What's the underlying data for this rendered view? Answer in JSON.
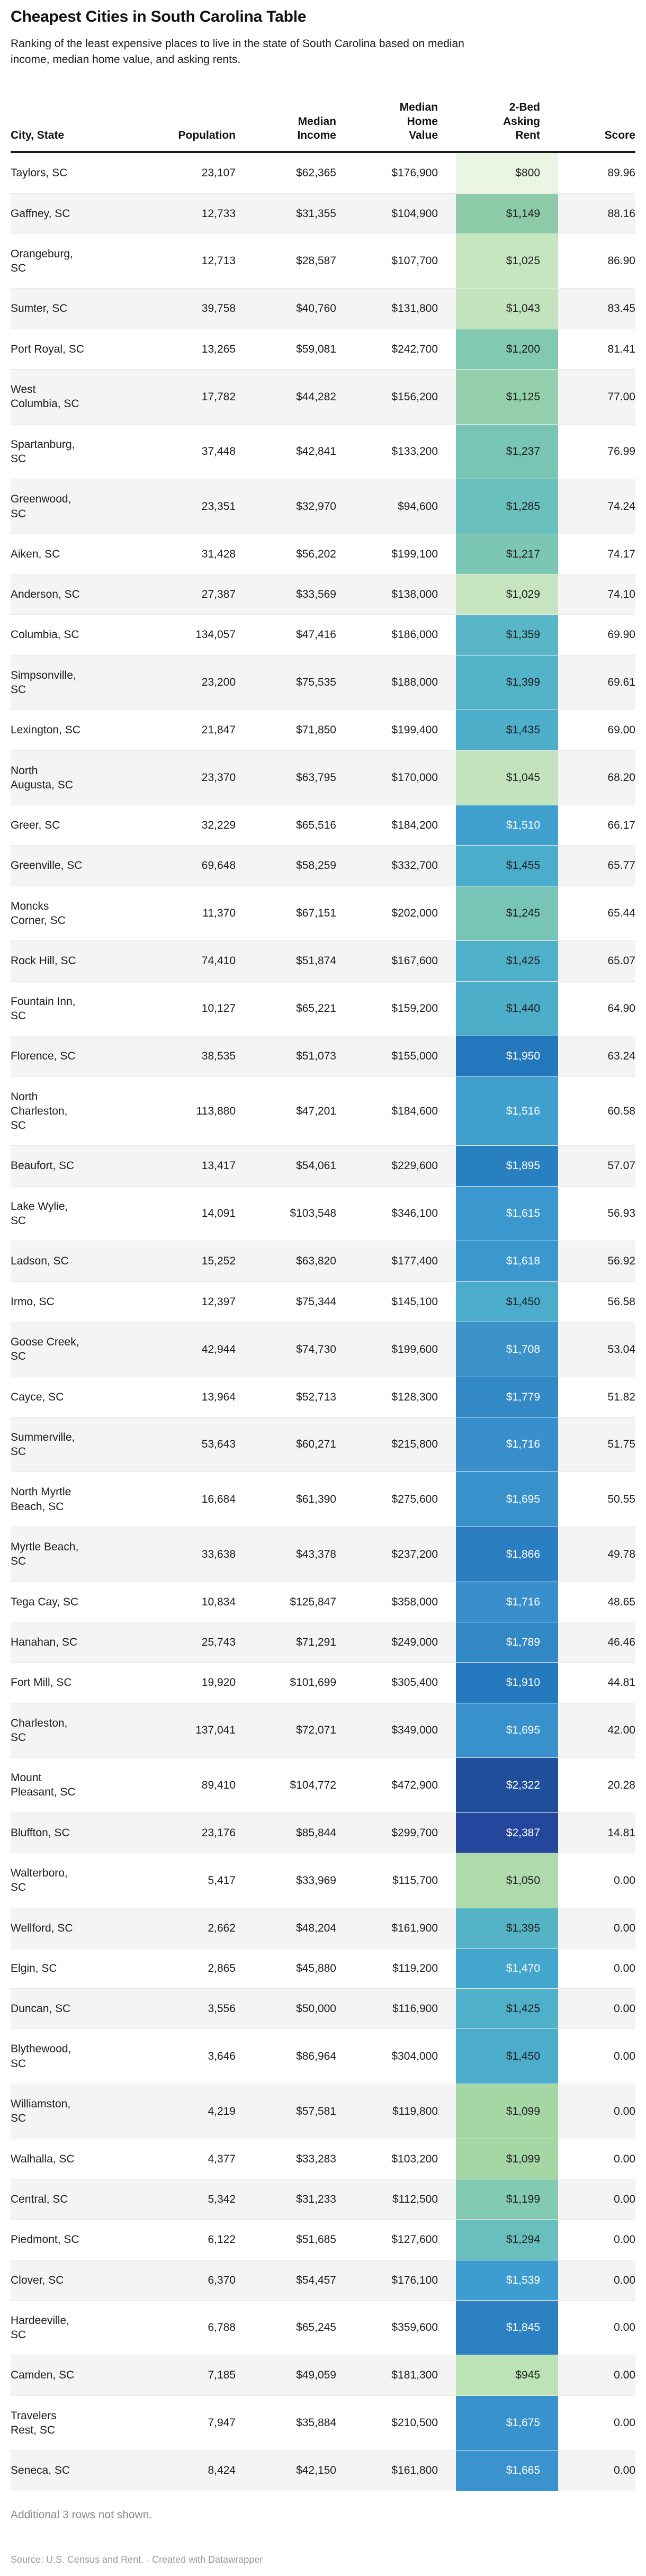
{
  "header": {
    "title": "Cheapest Cities in South Carolina Table",
    "description": "Ranking of the least expensive places to live in the state of South Carolina based on median\nincome, median home value, and asking rents."
  },
  "colors": {
    "rent_text_dark": "#1d1d1d",
    "rent_text_light": "#ffffff",
    "row_stripe": "#f4f4f4",
    "header_rule": "#1d1d1d",
    "muted_text": "#8c8c8c"
  },
  "chart_data": {
    "type": "table",
    "columns": [
      {
        "id": "city",
        "label": "City, State",
        "align": "left"
      },
      {
        "id": "population",
        "label": "Population",
        "align": "right"
      },
      {
        "id": "income",
        "label": "Median\nIncome",
        "align": "right"
      },
      {
        "id": "home",
        "label": "Median\nHome\nValue",
        "align": "right"
      },
      {
        "id": "rent",
        "label": "2-Bed\nAsking\nRent",
        "align": "right"
      },
      {
        "id": "score",
        "label": "Score",
        "align": "right"
      }
    ],
    "rows": [
      {
        "city": "Taylors, SC",
        "population": "23,107",
        "income": "$62,365",
        "home": "$176,900",
        "rent": "$800",
        "score": "89.96",
        "rent_bg": "#eaf5e4",
        "rent_text": "dark"
      },
      {
        "city": "Gaffney, SC",
        "population": "12,733",
        "income": "$31,355",
        "home": "$104,900",
        "rent": "$1,149",
        "score": "88.16",
        "rent_bg": "#8ccaa8",
        "rent_text": "dark"
      },
      {
        "city": "Orangeburg,\nSC",
        "population": "12,713",
        "income": "$28,587",
        "home": "$107,700",
        "rent": "$1,025",
        "score": "86.90",
        "rent_bg": "#c6e6c0",
        "rent_text": "dark"
      },
      {
        "city": "Sumter, SC",
        "population": "39,758",
        "income": "$40,760",
        "home": "$131,800",
        "rent": "$1,043",
        "score": "83.45",
        "rent_bg": "#c2e3bc",
        "rent_text": "dark"
      },
      {
        "city": "Port Royal, SC",
        "population": "13,265",
        "income": "$59,081",
        "home": "$242,700",
        "rent": "$1,200",
        "score": "81.41",
        "rent_bg": "#82c9b1",
        "rent_text": "dark"
      },
      {
        "city": "West\nColumbia, SC",
        "population": "17,782",
        "income": "$44,282",
        "home": "$156,200",
        "rent": "$1,125",
        "score": "77.00",
        "rent_bg": "#92cfaa",
        "rent_text": "dark"
      },
      {
        "city": "Spartanburg,\nSC",
        "population": "37,448",
        "income": "$42,841",
        "home": "$133,200",
        "rent": "$1,237",
        "score": "76.99",
        "rent_bg": "#78c5b5",
        "rent_text": "dark"
      },
      {
        "city": "Greenwood,\nSC",
        "population": "23,351",
        "income": "$32,970",
        "home": "$94,600",
        "rent": "$1,285",
        "score": "74.24",
        "rent_bg": "#6ac0bc",
        "rent_text": "dark"
      },
      {
        "city": "Aiken, SC",
        "population": "31,428",
        "income": "$56,202",
        "home": "$199,100",
        "rent": "$1,217",
        "score": "74.17",
        "rent_bg": "#7cc7b3",
        "rent_text": "dark"
      },
      {
        "city": "Anderson, SC",
        "population": "27,387",
        "income": "$33,569",
        "home": "$138,000",
        "rent": "$1,029",
        "score": "74.10",
        "rent_bg": "#c6e5bf",
        "rent_text": "dark"
      },
      {
        "city": "Columbia, SC",
        "population": "134,057",
        "income": "$47,416",
        "home": "$186,000",
        "rent": "$1,359",
        "score": "69.90",
        "rent_bg": "#58b6c6",
        "rent_text": "dark"
      },
      {
        "city": "Simpsonville,\nSC",
        "population": "23,200",
        "income": "$75,535",
        "home": "$188,000",
        "rent": "$1,399",
        "score": "69.61",
        "rent_bg": "#52b2c8",
        "rent_text": "dark"
      },
      {
        "city": "Lexington, SC",
        "population": "21,847",
        "income": "$71,850",
        "home": "$199,400",
        "rent": "$1,435",
        "score": "69.00",
        "rent_bg": "#4eafca",
        "rent_text": "dark"
      },
      {
        "city": "North\nAugusta, SC",
        "population": "23,370",
        "income": "$63,795",
        "home": "$170,000",
        "rent": "$1,045",
        "score": "68.20",
        "rent_bg": "#c2e3bc",
        "rent_text": "dark"
      },
      {
        "city": "Greer, SC",
        "population": "32,229",
        "income": "$65,516",
        "home": "$184,200",
        "rent": "$1,510",
        "score": "66.17",
        "rent_bg": "#3fa0cf",
        "rent_text": "light"
      },
      {
        "city": "Greenville, SC",
        "population": "69,648",
        "income": "$58,259",
        "home": "$332,700",
        "rent": "$1,455",
        "score": "65.77",
        "rent_bg": "#4aadcb",
        "rent_text": "dark"
      },
      {
        "city": "Moncks\nCorner, SC",
        "population": "11,370",
        "income": "$67,151",
        "home": "$202,000",
        "rent": "$1,245",
        "score": "65.44",
        "rent_bg": "#76c5b6",
        "rent_text": "dark"
      },
      {
        "city": "Rock Hill, SC",
        "population": "74,410",
        "income": "$51,874",
        "home": "$167,600",
        "rent": "$1,425",
        "score": "65.07",
        "rent_bg": "#4fb0c9",
        "rent_text": "dark"
      },
      {
        "city": "Fountain Inn,\nSC",
        "population": "10,127",
        "income": "$65,221",
        "home": "$159,200",
        "rent": "$1,440",
        "score": "64.90",
        "rent_bg": "#4daeca",
        "rent_text": "dark"
      },
      {
        "city": "Florence, SC",
        "population": "38,535",
        "income": "$51,073",
        "home": "$155,000",
        "rent": "$1,950",
        "score": "63.24",
        "rent_bg": "#2277bd",
        "rent_text": "light"
      },
      {
        "city": "North\nCharleston,\nSC",
        "population": "113,880",
        "income": "$47,201",
        "home": "$184,600",
        "rent": "$1,516",
        "score": "60.58",
        "rent_bg": "#3f9fcf",
        "rent_text": "light"
      },
      {
        "city": "Beaufort, SC",
        "population": "13,417",
        "income": "$54,061",
        "home": "$229,600",
        "rent": "$1,895",
        "score": "57.07",
        "rent_bg": "#2980c1",
        "rent_text": "light"
      },
      {
        "city": "Lake Wylie,\nSC",
        "population": "14,091",
        "income": "$103,548",
        "home": "$346,100",
        "rent": "$1,615",
        "score": "56.93",
        "rent_bg": "#3b98cf",
        "rent_text": "light"
      },
      {
        "city": "Ladson, SC",
        "population": "15,252",
        "income": "$63,820",
        "home": "$177,400",
        "rent": "$1,618",
        "score": "56.92",
        "rent_bg": "#3b98ce",
        "rent_text": "light"
      },
      {
        "city": "Irmo, SC",
        "population": "12,397",
        "income": "$75,344",
        "home": "$145,100",
        "rent": "$1,450",
        "score": "56.58",
        "rent_bg": "#4badcb",
        "rent_text": "dark"
      },
      {
        "city": "Goose Creek,\nSC",
        "population": "42,944",
        "income": "$74,730",
        "home": "$199,600",
        "rent": "$1,708",
        "score": "53.04",
        "rent_bg": "#3a92c8",
        "rent_text": "light"
      },
      {
        "city": "Cayce, SC",
        "population": "13,964",
        "income": "$52,713",
        "home": "$128,300",
        "rent": "$1,779",
        "score": "51.82",
        "rent_bg": "#3289c6",
        "rent_text": "light"
      },
      {
        "city": "Summerville,\nSC",
        "population": "53,643",
        "income": "$60,271",
        "home": "$215,800",
        "rent": "$1,716",
        "score": "51.75",
        "rent_bg": "#388fcb",
        "rent_text": "light"
      },
      {
        "city": "North Myrtle\nBeach, SC",
        "population": "16,684",
        "income": "$61,390",
        "home": "$275,600",
        "rent": "$1,695",
        "score": "50.55",
        "rent_bg": "#3991cc",
        "rent_text": "light"
      },
      {
        "city": "Myrtle Beach,\nSC",
        "population": "33,638",
        "income": "$43,378",
        "home": "$237,200",
        "rent": "$1,866",
        "score": "49.78",
        "rent_bg": "#2a7ec1",
        "rent_text": "light"
      },
      {
        "city": "Tega Cay, SC",
        "population": "10,834",
        "income": "$125,847",
        "home": "$358,000",
        "rent": "$1,716",
        "score": "48.65",
        "rent_bg": "#388fcb",
        "rent_text": "light"
      },
      {
        "city": "Hanahan, SC",
        "population": "25,743",
        "income": "$71,291",
        "home": "$249,000",
        "rent": "$1,789",
        "score": "46.46",
        "rent_bg": "#3188c5",
        "rent_text": "light"
      },
      {
        "city": "Fort Mill, SC",
        "population": "19,920",
        "income": "$101,699",
        "home": "$305,400",
        "rent": "$1,910",
        "score": "44.81",
        "rent_bg": "#2579be",
        "rent_text": "light"
      },
      {
        "city": "Charleston,\nSC",
        "population": "137,041",
        "income": "$72,071",
        "home": "$349,000",
        "rent": "$1,695",
        "score": "42.00",
        "rent_bg": "#3991cc",
        "rent_text": "light"
      },
      {
        "city": "Mount\nPleasant, SC",
        "population": "89,410",
        "income": "$104,772",
        "home": "$472,900",
        "rent": "$2,322",
        "score": "20.28",
        "rent_bg": "#1f4f9a",
        "rent_text": "light"
      },
      {
        "city": "Bluffton, SC",
        "population": "23,176",
        "income": "$85,844",
        "home": "$299,700",
        "rent": "$2,387",
        "score": "14.81",
        "rent_bg": "#24479d",
        "rent_text": "light"
      },
      {
        "city": "Walterboro,\nSC",
        "population": "5,417",
        "income": "$33,969",
        "home": "$115,700",
        "rent": "$1,050",
        "score": "0.00",
        "rent_bg": "#aedbab",
        "rent_text": "dark"
      },
      {
        "city": "Wellford, SC",
        "population": "2,662",
        "income": "$48,204",
        "home": "$161,900",
        "rent": "$1,395",
        "score": "0.00",
        "rent_bg": "#55b3c6",
        "rent_text": "dark"
      },
      {
        "city": "Elgin, SC",
        "population": "2,865",
        "income": "$45,880",
        "home": "$119,200",
        "rent": "$1,470",
        "score": "0.00",
        "rent_bg": "#43a6cd",
        "rent_text": "light"
      },
      {
        "city": "Duncan, SC",
        "population": "3,556",
        "income": "$50,000",
        "home": "$116,900",
        "rent": "$1,425",
        "score": "0.00",
        "rent_bg": "#4fb0c9",
        "rent_text": "dark"
      },
      {
        "city": "Blythewood,\nSC",
        "population": "3,646",
        "income": "$86,964",
        "home": "$304,000",
        "rent": "$1,450",
        "score": "0.00",
        "rent_bg": "#4badcb",
        "rent_text": "dark"
      },
      {
        "city": "Williamston,\nSC",
        "population": "4,219",
        "income": "$57,581",
        "home": "$119,800",
        "rent": "$1,099",
        "score": "0.00",
        "rent_bg": "#a5d7a5",
        "rent_text": "dark"
      },
      {
        "city": "Walhalla, SC",
        "population": "4,377",
        "income": "$33,283",
        "home": "$103,200",
        "rent": "$1,099",
        "score": "0.00",
        "rent_bg": "#a5d7a5",
        "rent_text": "dark"
      },
      {
        "city": "Central, SC",
        "population": "5,342",
        "income": "$31,233",
        "home": "$112,500",
        "rent": "$1,199",
        "score": "0.00",
        "rent_bg": "#83cab2",
        "rent_text": "dark"
      },
      {
        "city": "Piedmont, SC",
        "population": "6,122",
        "income": "$51,685",
        "home": "$127,600",
        "rent": "$1,294",
        "score": "0.00",
        "rent_bg": "#68bfbe",
        "rent_text": "dark"
      },
      {
        "city": "Clover, SC",
        "population": "6,370",
        "income": "$54,457",
        "home": "$176,100",
        "rent": "$1,539",
        "score": "0.00",
        "rent_bg": "#3d9dd0",
        "rent_text": "light"
      },
      {
        "city": "Hardeeville,\nSC",
        "population": "6,788",
        "income": "$65,245",
        "home": "$359,600",
        "rent": "$1,845",
        "score": "0.00",
        "rent_bg": "#2c81c2",
        "rent_text": "light"
      },
      {
        "city": "Camden, SC",
        "population": "7,185",
        "income": "$49,059",
        "home": "$181,300",
        "rent": "$945",
        "score": "0.00",
        "rent_bg": "#bce3b6",
        "rent_text": "dark"
      },
      {
        "city": "Travelers\nRest, SC",
        "population": "7,947",
        "income": "$35,884",
        "home": "$210,500",
        "rent": "$1,675",
        "score": "0.00",
        "rent_bg": "#3992cd",
        "rent_text": "light"
      },
      {
        "city": "Seneca, SC",
        "population": "8,424",
        "income": "$42,150",
        "home": "$161,800",
        "rent": "$1,665",
        "score": "0.00",
        "rent_bg": "#3a93cd",
        "rent_text": "light"
      }
    ]
  },
  "footer": {
    "note": "Additional 3 rows not shown.",
    "source": "Source: U.S. Census and Rent. · Created with Datawrapper"
  }
}
